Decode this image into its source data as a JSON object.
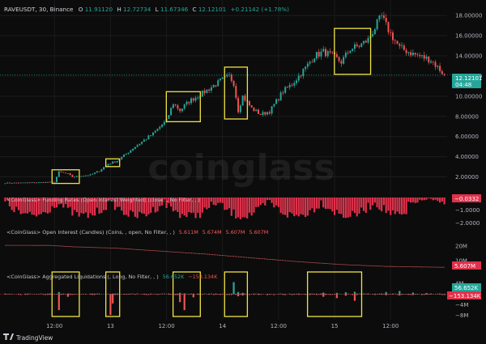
{
  "header": {
    "symbol": "RAVEUSDT, 30, Binance",
    "o_label": "O",
    "o_value": "11.91120",
    "h_label": "H",
    "h_value": "12.72734",
    "l_label": "L",
    "l_value": "11.67346",
    "c_label": "C",
    "c_value": "12.12101",
    "change": "+0.21142 (+1.78%)"
  },
  "watermark": "coinglass",
  "price_tag": {
    "value": "12.12101",
    "countdown": "04:48"
  },
  "panes": {
    "funding": {
      "title": "<CoinGlass> Funding Rates (Open Interest Weighted) (close, , No Filter, , )",
      "tag": "−0.0332"
    },
    "oi": {
      "title": "<CoinGlass> Open Interest (Candles) (Coins, , open, No Filter, , )",
      "values": [
        "5.611M",
        "5.674M",
        "5.607M",
        "5.607M"
      ],
      "tag": "5.607M"
    },
    "liq": {
      "title": "<CoinGlass> Aggregated Liquidations (, Long, No Filter, , )",
      "value_long": "56.652K",
      "value_short": "−153.134K",
      "tag_long": "56.652K",
      "tag_short": "−153.134K"
    }
  },
  "footer": {
    "brand": "TradingView"
  },
  "colors": {
    "up": "#26a69a",
    "down": "#ef5350",
    "axis_text": "#b2b5be",
    "highlight": "#f0e442",
    "oi_line": "#ff6b6b",
    "funding": "#e0314b"
  },
  "chart_data": [
    {
      "type": "candlestick",
      "title": "RAVEUSDT, 30, Binance",
      "x_ticks": [
        "12:00",
        "13",
        "12:00",
        "14",
        "12:00",
        "15",
        "12:00"
      ],
      "y_ticks": [
        "2.00000",
        "4.00000",
        "6.00000",
        "8.00000",
        "10.00000",
        "12.00000",
        "14.00000",
        "16.00000",
        "18.00000"
      ],
      "ylim": [
        0.6,
        18.9
      ],
      "grid": true,
      "close_path": [
        [
          0,
          1.4
        ],
        [
          16,
          1.45
        ],
        [
          22,
          1.5
        ],
        [
          24,
          2.5
        ],
        [
          28,
          2.3
        ],
        [
          30,
          2.0
        ],
        [
          38,
          2.2
        ],
        [
          42,
          2.6
        ],
        [
          46,
          3.3
        ],
        [
          50,
          3.6
        ],
        [
          58,
          5.0
        ],
        [
          66,
          6.3
        ],
        [
          72,
          7.6
        ],
        [
          75,
          9.3
        ],
        [
          78,
          8.6
        ],
        [
          82,
          9.5
        ],
        [
          88,
          10.3
        ],
        [
          96,
          11.5
        ],
        [
          100,
          12.0
        ],
        [
          102,
          11.3
        ],
        [
          104,
          8.6
        ],
        [
          106,
          10.0
        ],
        [
          110,
          8.8
        ],
        [
          114,
          8.2
        ],
        [
          118,
          8.5
        ],
        [
          124,
          10.5
        ],
        [
          128,
          11.2
        ],
        [
          134,
          12.8
        ],
        [
          138,
          14.0
        ],
        [
          142,
          14.4
        ],
        [
          146,
          14.0
        ],
        [
          150,
          13.4
        ],
        [
          154,
          14.7
        ],
        [
          158,
          15.0
        ],
        [
          162,
          15.6
        ],
        [
          166,
          17.2
        ],
        [
          168,
          17.9
        ],
        [
          170,
          17.0
        ],
        [
          172,
          16.2
        ],
        [
          176,
          14.8
        ],
        [
          182,
          14.2
        ],
        [
          190,
          13.6
        ],
        [
          196,
          12.12
        ]
      ],
      "annotated_ranges": [
        [
          22,
          32
        ],
        [
          46,
          50
        ],
        [
          73,
          86
        ],
        [
          99,
          107
        ],
        [
          148,
          162
        ]
      ]
    },
    {
      "type": "bar",
      "title": "<CoinGlass> Funding Rates (Open Interest Weighted) (close, , No Filter, , )",
      "y_ticks": [
        "0.0000",
        "−1.0000",
        "−2.0000"
      ],
      "ylim": [
        -2.1,
        0.1
      ],
      "last": -0.0332
    },
    {
      "type": "line",
      "title": "<CoinGlass> Open Interest (Candles) (Coins, , open, No Filter, , )",
      "y_ticks": [
        "20M",
        "10M"
      ],
      "ylim": [
        3,
        26
      ],
      "path": [
        [
          0,
          20.5
        ],
        [
          20,
          20.4
        ],
        [
          30,
          19.5
        ],
        [
          50,
          18.5
        ],
        [
          70,
          16.5
        ],
        [
          90,
          14.5
        ],
        [
          110,
          12.0
        ],
        [
          130,
          9.5
        ],
        [
          150,
          7.5
        ],
        [
          170,
          6.2
        ],
        [
          196,
          5.607
        ]
      ]
    },
    {
      "type": "bar",
      "title": "<CoinGlass> Aggregated Liquidations (, Long, No Filter, , )",
      "y_ticks": [
        "4M",
        "0",
        "−4M",
        "−8M"
      ],
      "ylim": [
        -9,
        6.5
      ],
      "bars": [
        [
          14,
          0.05,
          -0.1
        ],
        [
          24,
          0.8,
          -6.0
        ],
        [
          28,
          0.2,
          -1.0
        ],
        [
          47,
          0.1,
          -7.8
        ],
        [
          48,
          0.2,
          -3.5
        ],
        [
          78,
          0.5,
          -3.0
        ],
        [
          80,
          0.3,
          -6.0
        ],
        [
          84,
          0.2,
          -1.2
        ],
        [
          102,
          4.5,
          0
        ],
        [
          104,
          0.8,
          -0.8
        ],
        [
          106,
          0.5,
          -0.5
        ],
        [
          142,
          0.6,
          -1.0
        ],
        [
          148,
          0.5,
          -1.5
        ],
        [
          152,
          0.7,
          -0.6
        ],
        [
          156,
          0.9,
          -2.5
        ],
        [
          170,
          0.8,
          -0.4
        ],
        [
          176,
          1.2,
          -0.5
        ],
        [
          182,
          0.6,
          -0.3
        ],
        [
          188,
          0.4,
          -0.2
        ],
        [
          194,
          0.06,
          -0.15
        ]
      ],
      "annotated_ranges": [
        [
          22,
          32
        ],
        [
          46,
          50
        ],
        [
          76,
          86
        ],
        [
          99,
          107
        ],
        [
          136,
          158
        ]
      ]
    }
  ]
}
